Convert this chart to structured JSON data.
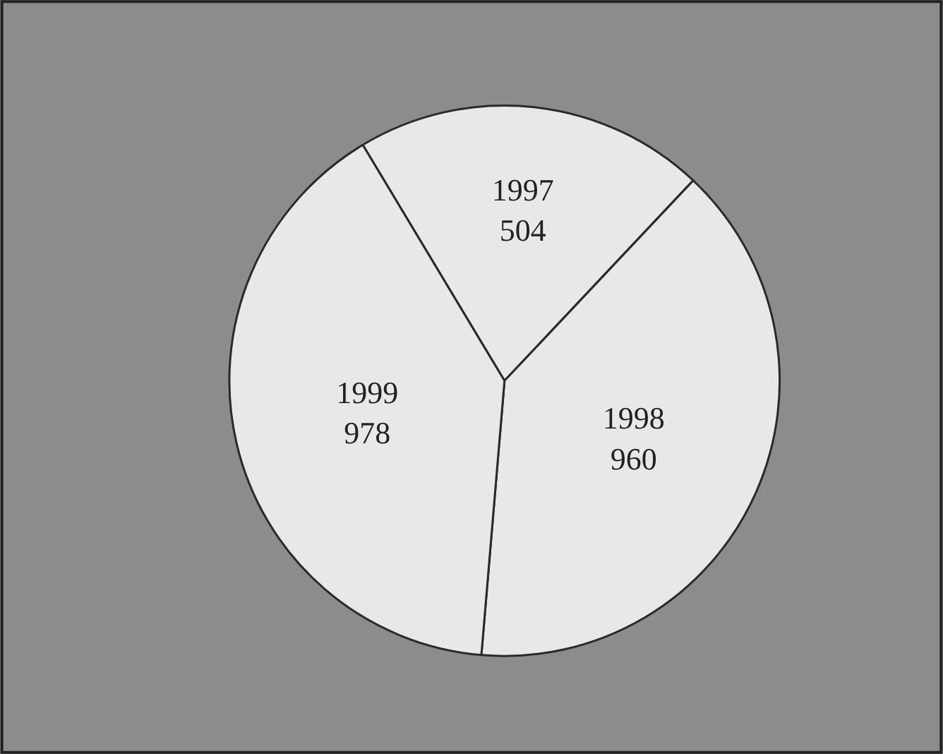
{
  "chart_data": {
    "type": "pie",
    "categories": [
      "1997",
      "1998",
      "1999"
    ],
    "values": [
      504,
      960,
      978
    ],
    "colors": [
      "#e8e8e8",
      "#e8e8e8",
      "#e8e8e8"
    ],
    "data_labels": true,
    "legend": false
  }
}
